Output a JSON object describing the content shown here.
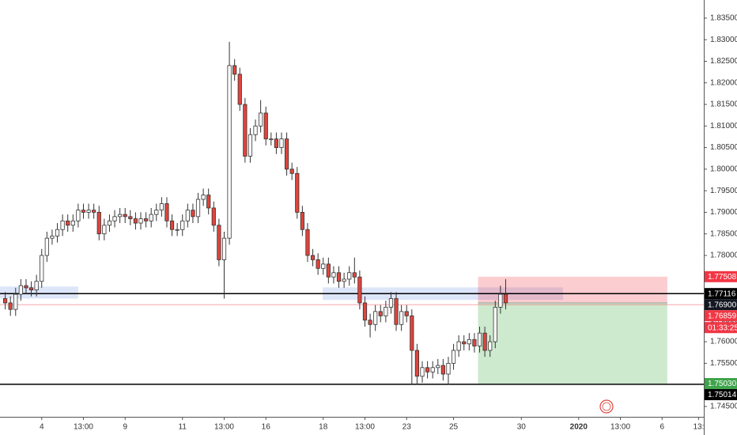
{
  "chart_data": {
    "type": "candlestick",
    "x": [
      0,
      1,
      2,
      3,
      4,
      5,
      6,
      7,
      8,
      9,
      10,
      11,
      12,
      13,
      14,
      15,
      16,
      17,
      18,
      19,
      20,
      21,
      22,
      23,
      24,
      25,
      26,
      27,
      28,
      29,
      30,
      31,
      32,
      33,
      34,
      35,
      36,
      37,
      38,
      39,
      40,
      41,
      42,
      43,
      44,
      45,
      46,
      47,
      48,
      49,
      50,
      51,
      52,
      53,
      54,
      55,
      56,
      57,
      58,
      59,
      60,
      61,
      62,
      63,
      64,
      65,
      66,
      67,
      68,
      69,
      70,
      71,
      72,
      73,
      74,
      75,
      76,
      77,
      78,
      79,
      80,
      81,
      82,
      83,
      84,
      85,
      86,
      87,
      88,
      89,
      90,
      91,
      92,
      93,
      94,
      95,
      96
    ],
    "open": [
      1.77,
      1.769,
      1.7675,
      1.771,
      1.773,
      1.7725,
      1.772,
      1.774,
      1.78,
      1.784,
      1.7845,
      1.786,
      1.788,
      1.787,
      1.788,
      1.7905,
      1.79,
      1.7905,
      1.79,
      1.785,
      1.787,
      1.788,
      1.789,
      1.7895,
      1.789,
      1.7885,
      1.7875,
      1.7885,
      1.788,
      1.7895,
      1.7905,
      1.792,
      1.788,
      1.786,
      1.786,
      1.788,
      1.7905,
      1.789,
      1.793,
      1.794,
      1.791,
      1.787,
      1.779,
      1.784,
      1.824,
      1.822,
      1.815,
      1.803,
      1.808,
      1.81,
      1.813,
      1.807,
      1.807,
      1.805,
      1.807,
      1.8,
      1.799,
      1.79,
      1.786,
      1.78,
      1.779,
      1.777,
      1.778,
      1.775,
      1.776,
      1.774,
      1.7745,
      1.776,
      1.775,
      1.769,
      1.765,
      1.764,
      1.767,
      1.766,
      1.768,
      1.77,
      1.764,
      1.767,
      1.766,
      1.758,
      1.752,
      1.754,
      1.753,
      1.754,
      1.7545,
      1.7525,
      1.755,
      1.758,
      1.76,
      1.7595,
      1.7605,
      1.759,
      1.762,
      1.758,
      1.76,
      1.768,
      1.771
    ],
    "high": [
      1.7715,
      1.7705,
      1.7725,
      1.7745,
      1.7745,
      1.774,
      1.7755,
      1.7815,
      1.7855,
      1.786,
      1.7875,
      1.7895,
      1.7895,
      1.7895,
      1.792,
      1.792,
      1.792,
      1.792,
      1.7915,
      1.7885,
      1.7895,
      1.7905,
      1.791,
      1.791,
      1.7905,
      1.79,
      1.79,
      1.79,
      1.791,
      1.792,
      1.7935,
      1.7935,
      1.7895,
      1.7875,
      1.7895,
      1.792,
      1.792,
      1.7945,
      1.7955,
      1.7955,
      1.7925,
      1.7885,
      1.7855,
      1.8295,
      1.8255,
      1.8235,
      1.8165,
      1.8095,
      1.8115,
      1.816,
      1.8145,
      1.8085,
      1.8085,
      1.8085,
      1.8085,
      1.8015,
      1.8005,
      1.7915,
      1.7875,
      1.7815,
      1.7805,
      1.7795,
      1.7795,
      1.7775,
      1.7775,
      1.776,
      1.7775,
      1.7795,
      1.7765,
      1.7705,
      1.7665,
      1.7685,
      1.7685,
      1.7695,
      1.7715,
      1.7715,
      1.7685,
      1.7685,
      1.7675,
      1.7595,
      1.7555,
      1.7555,
      1.7555,
      1.756,
      1.756,
      1.7565,
      1.7595,
      1.7615,
      1.7615,
      1.762,
      1.762,
      1.7635,
      1.7635,
      1.7615,
      1.7695,
      1.773,
      1.7745
    ],
    "low": [
      1.7675,
      1.766,
      1.766,
      1.7695,
      1.771,
      1.7705,
      1.7705,
      1.7725,
      1.7785,
      1.7825,
      1.783,
      1.7845,
      1.7855,
      1.7855,
      1.7865,
      1.7885,
      1.7885,
      1.7885,
      1.7835,
      1.7835,
      1.7855,
      1.7865,
      1.7875,
      1.7875,
      1.787,
      1.786,
      1.786,
      1.7865,
      1.7865,
      1.788,
      1.789,
      1.7865,
      1.7845,
      1.7845,
      1.7845,
      1.7865,
      1.7875,
      1.7875,
      1.7915,
      1.7895,
      1.7855,
      1.7775,
      1.77,
      1.7825,
      1.8205,
      1.8135,
      1.8015,
      1.8015,
      1.8065,
      1.8085,
      1.8055,
      1.8055,
      1.8035,
      1.8035,
      1.7985,
      1.7975,
      1.7885,
      1.7845,
      1.7785,
      1.7775,
      1.7755,
      1.7755,
      1.7735,
      1.7735,
      1.7725,
      1.7725,
      1.773,
      1.7735,
      1.7675,
      1.7635,
      1.761,
      1.7625,
      1.7645,
      1.7645,
      1.7665,
      1.7625,
      1.7625,
      1.7645,
      1.75,
      1.75,
      1.7505,
      1.7515,
      1.7515,
      1.7525,
      1.751,
      1.75,
      1.7535,
      1.7565,
      1.758,
      1.758,
      1.7575,
      1.7575,
      1.7565,
      1.7565,
      1.7585,
      1.7665,
      1.7675
    ],
    "close": [
      1.769,
      1.7675,
      1.771,
      1.773,
      1.7725,
      1.772,
      1.774,
      1.78,
      1.784,
      1.7845,
      1.786,
      1.788,
      1.787,
      1.788,
      1.7905,
      1.79,
      1.7905,
      1.79,
      1.785,
      1.787,
      1.788,
      1.789,
      1.7895,
      1.789,
      1.7885,
      1.7875,
      1.7885,
      1.788,
      1.7895,
      1.7905,
      1.792,
      1.788,
      1.786,
      1.786,
      1.788,
      1.7905,
      1.789,
      1.793,
      1.794,
      1.791,
      1.787,
      1.779,
      1.784,
      1.824,
      1.822,
      1.815,
      1.803,
      1.808,
      1.81,
      1.813,
      1.807,
      1.807,
      1.805,
      1.807,
      1.8,
      1.799,
      1.79,
      1.786,
      1.78,
      1.779,
      1.777,
      1.778,
      1.775,
      1.776,
      1.774,
      1.7745,
      1.776,
      1.775,
      1.769,
      1.765,
      1.764,
      1.767,
      1.766,
      1.768,
      1.77,
      1.764,
      1.767,
      1.766,
      1.758,
      1.752,
      1.754,
      1.753,
      1.754,
      1.7545,
      1.7525,
      1.755,
      1.758,
      1.76,
      1.7595,
      1.7605,
      1.759,
      1.762,
      1.758,
      1.76,
      1.768,
      1.771,
      1.769
    ],
    "up_color": "#ffffff",
    "down_color": "#e0443c",
    "xlim": [
      -1,
      134
    ],
    "xticks": [
      {
        "value": 7,
        "label": "4"
      },
      {
        "value": 15,
        "label": "13:00"
      },
      {
        "value": 23,
        "label": "9"
      },
      {
        "value": 34,
        "label": "11"
      },
      {
        "value": 42,
        "label": "13:00"
      },
      {
        "value": 50,
        "label": "16"
      },
      {
        "value": 61,
        "label": "18"
      },
      {
        "value": 69,
        "label": "13:00"
      },
      {
        "value": 77,
        "label": "23"
      },
      {
        "value": 86,
        "label": "25"
      },
      {
        "value": 99,
        "label": "30"
      },
      {
        "value": 110,
        "label": "2020"
      },
      {
        "value": 118,
        "label": "13:00"
      },
      {
        "value": 126,
        "label": "6"
      },
      {
        "value": 133,
        "label": "13:"
      }
    ],
    "ylim": [
      1.7426,
      1.8392
    ],
    "yticks": [
      {
        "value": 1.745,
        "label": "1.74500"
      },
      {
        "value": 1.75,
        "label": "1.75000"
      },
      {
        "value": 1.755,
        "label": "1.75500"
      },
      {
        "value": 1.76,
        "label": "1.76000"
      },
      {
        "value": 1.765,
        "label": "1.76500"
      },
      {
        "value": 1.77,
        "label": "1.77000"
      },
      {
        "value": 1.775,
        "label": "1.77500"
      },
      {
        "value": 1.78,
        "label": "1.78000"
      },
      {
        "value": 1.785,
        "label": "1.78500"
      },
      {
        "value": 1.79,
        "label": "1.79000"
      },
      {
        "value": 1.795,
        "label": "1.79500"
      },
      {
        "value": 1.8,
        "label": "1.80000"
      },
      {
        "value": 1.805,
        "label": "1.80500"
      },
      {
        "value": 1.81,
        "label": "1.81000"
      },
      {
        "value": 1.815,
        "label": "1.81500"
      },
      {
        "value": 1.82,
        "label": "1.82000"
      },
      {
        "value": 1.825,
        "label": "1.82500"
      },
      {
        "value": 1.83,
        "label": "1.83000"
      },
      {
        "value": 1.835,
        "label": "1.83500"
      }
    ],
    "lines": [
      1.77116,
      1.75014
    ],
    "zones": [
      {
        "x": [
          -1,
          14
        ],
        "y": [
          1.77,
          1.7728
        ],
        "color": "rgba(120,150,230,0.25)"
      },
      {
        "x": [
          60.9,
          107
        ],
        "y": [
          1.7697,
          1.7726
        ],
        "color": "rgba(120,150,230,0.25)"
      }
    ],
    "position": {
      "x": [
        90.7,
        127
      ],
      "stop": 1.77508,
      "entry": 1.769,
      "target": 1.7503,
      "stop_color": "rgba(242,54,69,0.25)",
      "target_color": "rgba(76,175,80,0.28)"
    },
    "price_labels": [
      {
        "value": 1.77508,
        "label": "1.77508",
        "color": "#f23645"
      },
      {
        "value": 1.77116,
        "label": "1.77116",
        "color": "#000000"
      },
      {
        "value": 1.769,
        "label": "1.76900",
        "color": "#131722"
      },
      {
        "value": 1.76859,
        "label": "1.76859",
        "color": "#f23645",
        "sub": "01:33:25"
      },
      {
        "value": 1.7503,
        "label": "1.75030",
        "color": "#3ea34a"
      },
      {
        "value": 1.75014,
        "label": "1.75014",
        "color": "#000000"
      }
    ]
  }
}
